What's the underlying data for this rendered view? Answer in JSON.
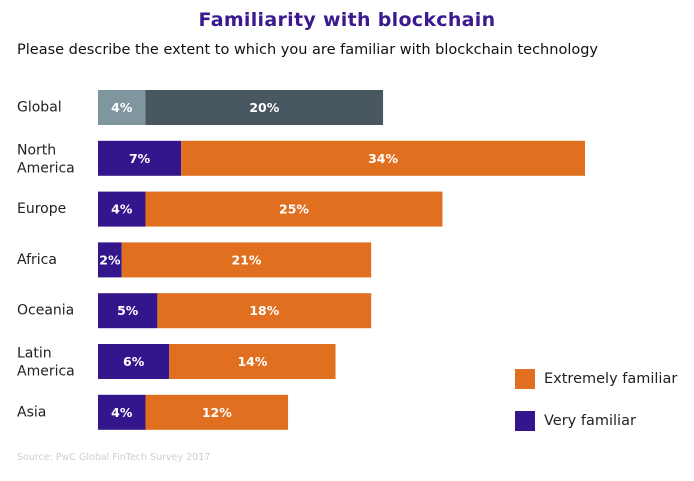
{
  "title": "Familiarity with blockchain",
  "subtitle": "Please describe the extent to which you are familiar with blockchain technology",
  "source": "Source: PwC Global FinTech Survey 2017",
  "colors": {
    "very": "#33168c",
    "extremely": "#e07020",
    "global_very": "#7f969e",
    "global_extremely": "#485760"
  },
  "chart_data": {
    "type": "bar",
    "orientation": "horizontal",
    "stacked": true,
    "title": "Familiarity with blockchain",
    "xlim": [
      0,
      41
    ],
    "categories": [
      [
        "Global"
      ],
      [
        "North",
        "America"
      ],
      [
        "Europe"
      ],
      [
        "Africa"
      ],
      [
        "Oceania"
      ],
      [
        "Latin",
        "America"
      ],
      [
        "Asia"
      ]
    ],
    "series": [
      {
        "name": "Very familiar",
        "values": [
          4,
          7,
          4,
          2,
          5,
          6,
          4
        ]
      },
      {
        "name": "Extremely familiar",
        "values": [
          20,
          34,
          25,
          21,
          18,
          14,
          12
        ]
      }
    ],
    "value_suffix": "%",
    "legend": [
      "Extremely familiar",
      "Very familiar"
    ],
    "legend_position": "bottom-right"
  }
}
